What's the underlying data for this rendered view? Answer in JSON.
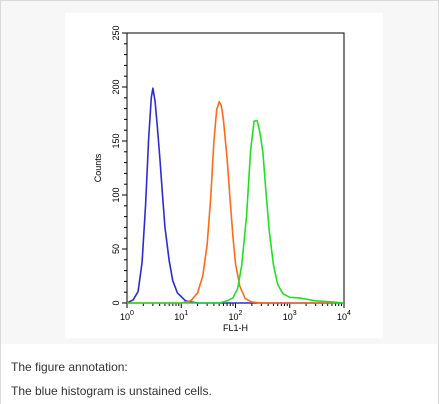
{
  "chart_data": {
    "type": "line",
    "xlabel": "FL1-H",
    "ylabel": "Counts",
    "xscale": "log",
    "xlim": [
      1,
      10000
    ],
    "ylim": [
      0,
      250
    ],
    "xticks": [
      {
        "base": "10",
        "exp": "0",
        "value": 1
      },
      {
        "base": "10",
        "exp": "1",
        "value": 10
      },
      {
        "base": "10",
        "exp": "2",
        "value": 100
      },
      {
        "base": "10",
        "exp": "3",
        "value": 1000
      },
      {
        "base": "10",
        "exp": "4",
        "value": 10000
      }
    ],
    "yticks": [
      "0",
      "50",
      "100",
      "150",
      "200",
      "250"
    ],
    "series": [
      {
        "color": "#2b2bd6",
        "x": [
          1,
          1.3,
          1.6,
          1.9,
          2.2,
          2.5,
          2.8,
          3.0,
          3.3,
          3.6,
          4.0,
          4.5,
          5.0,
          6.0,
          7.0,
          8.5,
          10,
          12,
          15,
          20,
          30,
          50,
          100,
          300,
          1000,
          10000
        ],
        "y": [
          0,
          3,
          12,
          38,
          90,
          150,
          190,
          200,
          188,
          165,
          135,
          100,
          70,
          40,
          22,
          10,
          5,
          2,
          1,
          0,
          0,
          0,
          0,
          0,
          0,
          0
        ]
      },
      {
        "color": "#ff6a14",
        "x": [
          1,
          10,
          15,
          20,
          25,
          30,
          35,
          40,
          45,
          50,
          55,
          60,
          70,
          80,
          90,
          100,
          120,
          150,
          200,
          300,
          1000,
          10000
        ],
        "y": [
          0,
          0,
          2,
          8,
          25,
          55,
          100,
          150,
          178,
          185,
          182,
          170,
          135,
          95,
          60,
          35,
          15,
          5,
          1,
          0,
          0,
          0
        ]
      },
      {
        "color": "#22e022",
        "x": [
          1,
          50,
          70,
          90,
          110,
          130,
          160,
          190,
          220,
          250,
          280,
          320,
          360,
          420,
          500,
          600,
          750,
          1000,
          1500,
          3000,
          6000,
          10000
        ],
        "y": [
          0,
          0,
          2,
          6,
          15,
          35,
          80,
          140,
          168,
          170,
          160,
          140,
          105,
          65,
          35,
          18,
          10,
          6,
          4,
          2,
          1,
          0
        ]
      }
    ]
  },
  "annotation": {
    "title": "The figure annotation:",
    "text": "The blue histogram is unstained cells."
  }
}
